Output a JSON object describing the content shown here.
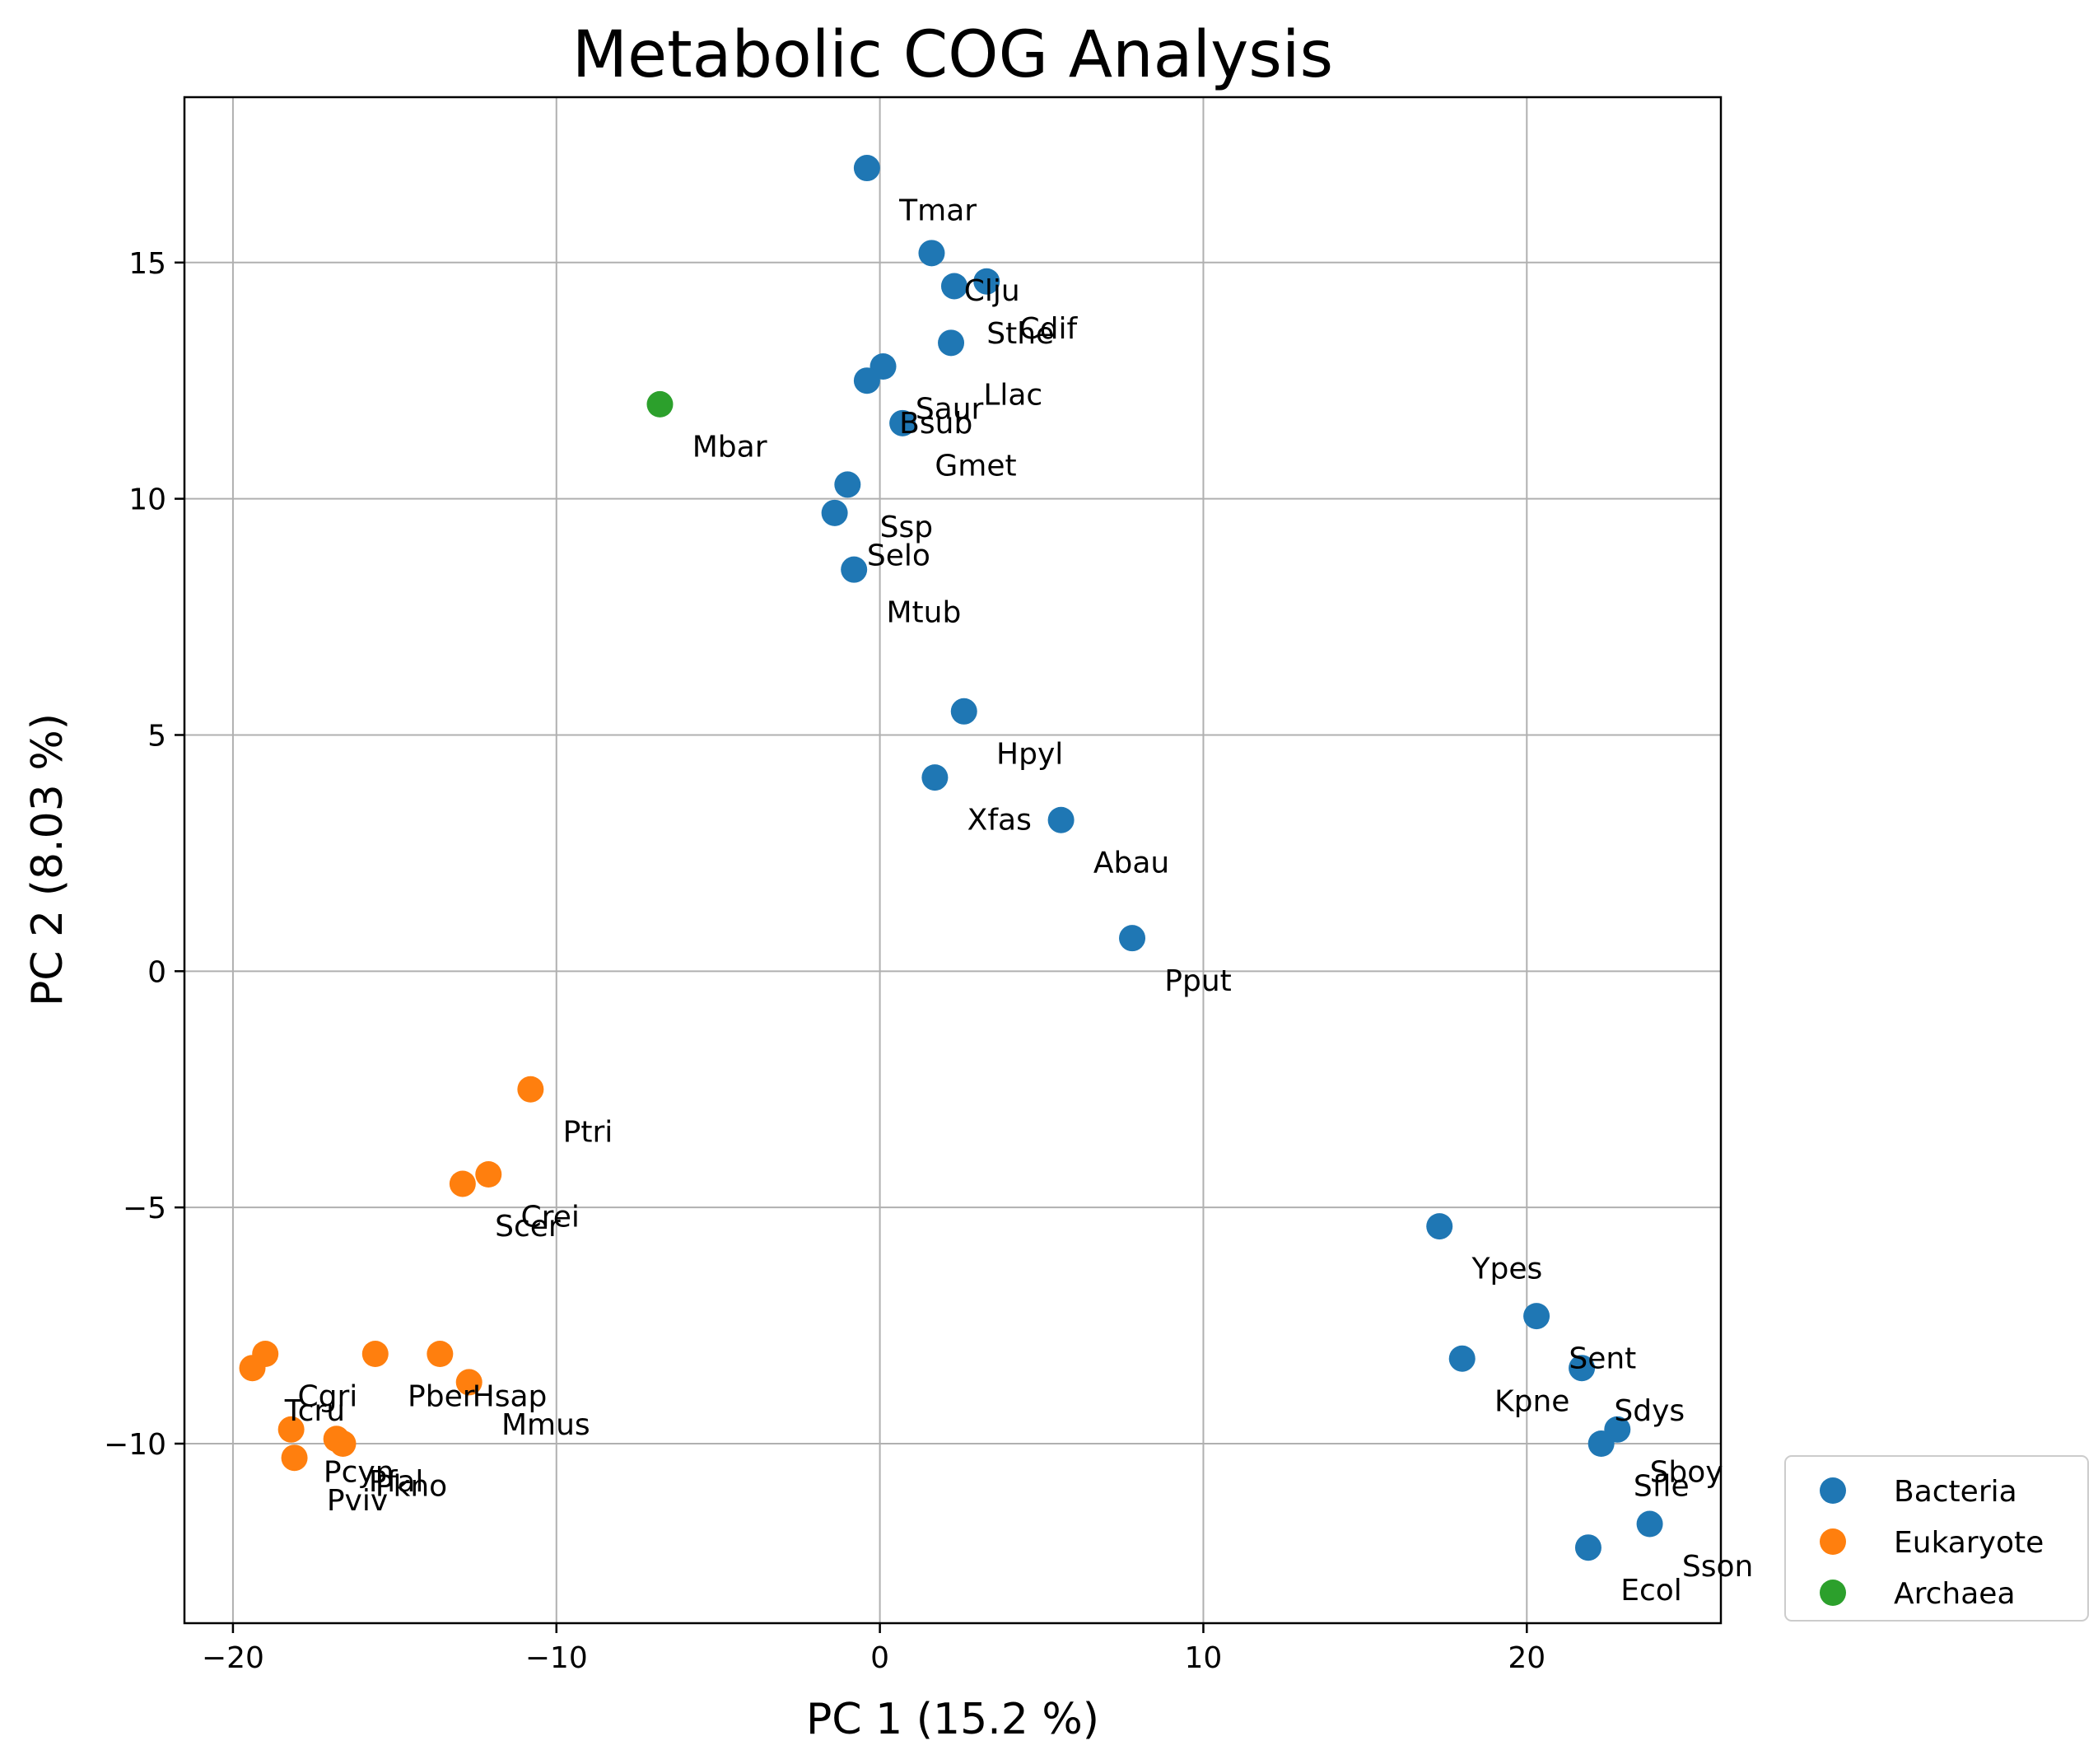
{
  "chart_data": {
    "type": "scatter",
    "title": "Metabolic COG Analysis",
    "xlabel": "PC 1 (15.2 %)",
    "ylabel": "PC 2 (8.03 %)",
    "xlim": [
      -21.5,
      26.0
    ],
    "ylim": [
      -13.8,
      18.5
    ],
    "xticks": [
      -20,
      -10,
      0,
      10,
      20
    ],
    "yticks": [
      -10,
      -5,
      0,
      5,
      10,
      15
    ],
    "xtick_labels": [
      "−20",
      "−10",
      "0",
      "10",
      "20"
    ],
    "ytick_labels": [
      "−10",
      "−5",
      "0",
      "5",
      "10",
      "15"
    ],
    "grid": true,
    "legend_position": "outside lower right",
    "series": [
      {
        "name": "Bacteria",
        "color": "#1f77b4",
        "points": [
          {
            "x": -0.4,
            "y": 17.0,
            "label": "Tmar",
            "lx": 0.6,
            "ly": 16.1
          },
          {
            "x": 1.6,
            "y": 15.2,
            "label": "Clju",
            "lx": 2.6,
            "ly": 14.4
          },
          {
            "x": 2.3,
            "y": 14.5,
            "label": "Sthe",
            "lx": 3.3,
            "ly": 13.5
          },
          {
            "x": 3.3,
            "y": 14.6,
            "label": "Cdif",
            "lx": 4.3,
            "ly": 13.6
          },
          {
            "x": 2.2,
            "y": 13.3,
            "label": "Llac",
            "lx": 3.2,
            "ly": 12.2
          },
          {
            "x": 0.1,
            "y": 12.8,
            "label": "Saur",
            "lx": 1.1,
            "ly": 11.9
          },
          {
            "x": -0.4,
            "y": 12.5,
            "label": "Bsub",
            "lx": 0.6,
            "ly": 11.6
          },
          {
            "x": 0.7,
            "y": 11.6,
            "label": "Gmet",
            "lx": 1.7,
            "ly": 10.7
          },
          {
            "x": -1.0,
            "y": 10.3,
            "label": "Ssp",
            "lx": 0.0,
            "ly": 9.4
          },
          {
            "x": -1.4,
            "y": 9.7,
            "label": "Selo",
            "lx": -0.4,
            "ly": 8.8
          },
          {
            "x": -0.8,
            "y": 8.5,
            "label": "Mtub",
            "lx": 0.2,
            "ly": 7.6
          },
          {
            "x": 2.6,
            "y": 5.5,
            "label": "Hpyl",
            "lx": 3.6,
            "ly": 4.6
          },
          {
            "x": 1.7,
            "y": 4.1,
            "label": "Xfas",
            "lx": 2.7,
            "ly": 3.2
          },
          {
            "x": 5.6,
            "y": 3.2,
            "label": "Abau",
            "lx": 6.6,
            "ly": 2.3
          },
          {
            "x": 7.8,
            "y": 0.7,
            "label": "Pput",
            "lx": 8.8,
            "ly": -0.2
          },
          {
            "x": 17.3,
            "y": -5.4,
            "label": "Ypes",
            "lx": 18.3,
            "ly": -6.3
          },
          {
            "x": 20.3,
            "y": -7.3,
            "label": "Sent",
            "lx": 21.3,
            "ly": -8.2
          },
          {
            "x": 18.0,
            "y": -8.2,
            "label": "Kpne",
            "lx": 19.0,
            "ly": -9.1
          },
          {
            "x": 21.7,
            "y": -8.4,
            "label": "Sdys",
            "lx": 22.7,
            "ly": -9.3
          },
          {
            "x": 22.8,
            "y": -9.7,
            "label": "Sboy",
            "lx": 23.8,
            "ly": -10.6
          },
          {
            "x": 22.3,
            "y": -10.0,
            "label": "Sfle",
            "lx": 23.3,
            "ly": -10.9
          },
          {
            "x": 23.8,
            "y": -11.7,
            "label": "Sson",
            "lx": 24.8,
            "ly": -12.6
          },
          {
            "x": 21.9,
            "y": -12.2,
            "label": "Ecol",
            "lx": 22.9,
            "ly": -13.1
          }
        ]
      },
      {
        "name": "Eukaryote",
        "color": "#ff7f0e",
        "points": [
          {
            "x": -10.8,
            "y": -2.5,
            "label": "Ptri",
            "lx": -9.8,
            "ly": -3.4
          },
          {
            "x": -12.1,
            "y": -4.3,
            "label": "Crei",
            "lx": -11.1,
            "ly": -5.2
          },
          {
            "x": -12.9,
            "y": -4.5,
            "label": "Scer",
            "lx": -11.9,
            "ly": -5.4
          },
          {
            "x": -15.6,
            "y": -8.1,
            "label": "Pber",
            "lx": -14.6,
            "ly": -9.0
          },
          {
            "x": -13.6,
            "y": -8.1,
            "label": "Hsap",
            "lx": -12.6,
            "ly": -9.0
          },
          {
            "x": -12.7,
            "y": -8.7,
            "label": "Mmus",
            "lx": -11.7,
            "ly": -9.6
          },
          {
            "x": -19.0,
            "y": -8.1,
            "label": "Cgri",
            "lx": -18.0,
            "ly": -9.0
          },
          {
            "x": -19.4,
            "y": -8.4,
            "label": "Tcru",
            "lx": -18.4,
            "ly": -9.3
          },
          {
            "x": -18.2,
            "y": -9.7,
            "label": "Pcyn",
            "lx": -17.2,
            "ly": -10.6
          },
          {
            "x": -16.8,
            "y": -9.9,
            "label": "Pfal",
            "lx": -15.8,
            "ly": -10.8
          },
          {
            "x": -16.6,
            "y": -10.0,
            "label": "Pkno",
            "lx": -15.6,
            "ly": -10.9
          },
          {
            "x": -18.1,
            "y": -10.3,
            "label": "Pviv",
            "lx": -17.1,
            "ly": -11.2
          }
        ]
      },
      {
        "name": "Archaea",
        "color": "#2ca02c",
        "points": [
          {
            "x": -6.8,
            "y": 12.0,
            "label": "Mbar",
            "lx": -5.8,
            "ly": 11.1
          }
        ]
      }
    ]
  }
}
